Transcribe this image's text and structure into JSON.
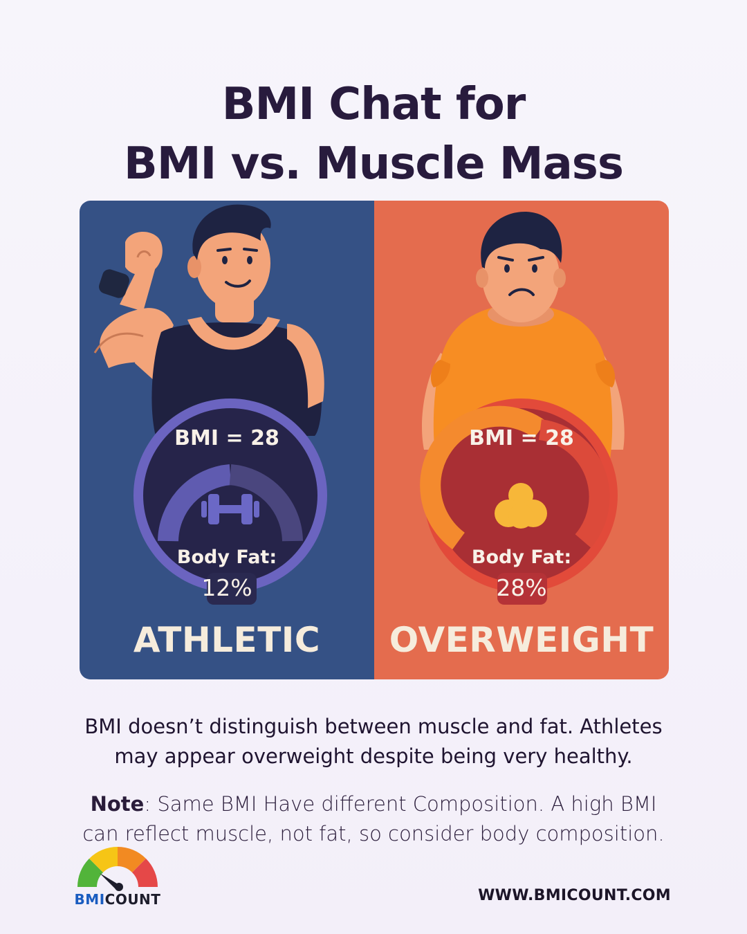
{
  "title": {
    "line1": "BMI Chat for",
    "line2": "BMI vs. Muscle Mass"
  },
  "panels": {
    "athletic": {
      "bmi": "BMI = 28",
      "body_fat_label": "Body Fat:",
      "body_fat_value": "12%",
      "category": "ATHLETIC",
      "color": "#355185",
      "gauge_icon": "dumbbell-icon"
    },
    "overweight": {
      "bmi": "BMI = 28",
      "body_fat_label": "Body Fat:",
      "body_fat_value": "28%",
      "category": "OVERWEIGHT",
      "color": "#e46c4e",
      "gauge_icon": "fat-blob-icon"
    }
  },
  "description": "BMI doesn’t distinguish between muscle and fat. Athletes may appear overweight despite being very healthy.",
  "note": {
    "label": "Note",
    "text": ": Same BMI Have different Composition. A high BMI can reflect muscle, not fat, so consider body composition."
  },
  "logo": {
    "part1": "BMI",
    "part2": "COUNT"
  },
  "website": "WWW.BMICOUNT.COM"
}
